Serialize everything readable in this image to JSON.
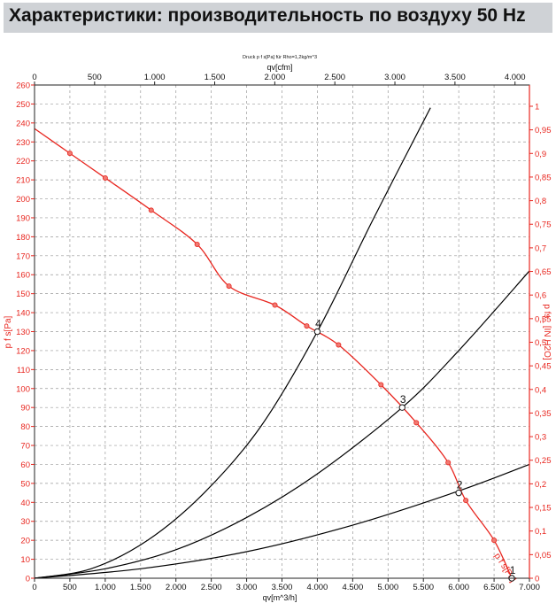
{
  "page": {
    "heading": "Характеристики: производительность по воздуху 50 Hz"
  },
  "chart_data": {
    "type": "line",
    "title": "Druck p f s[Pa] für Rho=1,2kg/m^3",
    "xlabel": "qv[m^3/h]",
    "x2label": "qv[cfm]",
    "ylabel": "p f s[Pa]",
    "y2label": "p fs_ [IN H2O]",
    "xlim": [
      0,
      7000
    ],
    "ylim": [
      0,
      260
    ],
    "x2lim": [
      0,
      4120
    ],
    "y2lim": [
      0,
      1.045
    ],
    "x_ticks": [
      0,
      500,
      1000,
      1500,
      2000,
      2500,
      3000,
      3500,
      4000,
      4500,
      5000,
      5500,
      6000,
      6500,
      7000
    ],
    "x_tick_labels": [
      "0",
      "500",
      "1.000",
      "1.500",
      "2.000",
      "2.500",
      "3.000",
      "3.500",
      "4.000",
      "4.500",
      "5.000",
      "5.500",
      "6.000",
      "6.500",
      "7.000"
    ],
    "y_ticks": [
      0,
      10,
      20,
      30,
      40,
      50,
      60,
      70,
      80,
      90,
      100,
      110,
      120,
      130,
      140,
      150,
      160,
      170,
      180,
      190,
      200,
      210,
      220,
      230,
      240,
      250,
      260
    ],
    "x2_ticks": [
      0,
      500,
      1000,
      1500,
      2000,
      2500,
      3000,
      3500,
      4000
    ],
    "x2_tick_labels": [
      "0",
      "500",
      "1.000",
      "1.500",
      "2.000",
      "2.500",
      "3.000",
      "3.500",
      "4.000"
    ],
    "y2_ticks": [
      0,
      0.05,
      0.1,
      0.15,
      0.2,
      0.25,
      0.3,
      0.35,
      0.4,
      0.45,
      0.5,
      0.55,
      0.6,
      0.65,
      0.7,
      0.75,
      0.8,
      0.85,
      0.9,
      0.95,
      1
    ],
    "y2_tick_labels": [
      "0",
      "0,05",
      "0,1",
      "0,15",
      "0,2",
      "0,25",
      "0,3",
      "0,35",
      "0,4",
      "0,45",
      "0,5",
      "0,55",
      "0,6",
      "0,65",
      "0,7",
      "0,75",
      "0,8",
      "0,85",
      "0,9",
      "0,95",
      "1"
    ],
    "grid": true,
    "colors": {
      "fan_curve": "#e8261f",
      "system_curves": "#000000",
      "secondary_axes": "#e8261f"
    },
    "fan_curve": {
      "x": [
        0,
        500,
        1000,
        1650,
        2300,
        2750,
        3400,
        3850,
        4300,
        4900,
        5400,
        5850,
        6100,
        6500,
        6750
      ],
      "y": [
        237,
        224,
        211,
        194,
        176,
        154,
        144,
        133,
        123,
        102,
        82,
        61,
        41,
        20,
        0
      ]
    },
    "fan_curve_label": "p f s[Pa]",
    "system_curves": [
      {
        "x": [
          0,
          800,
          1600,
          2400,
          3200,
          4000,
          4800,
          5600
        ],
        "y": [
          0,
          5,
          20,
          45,
          80,
          130,
          190,
          248
        ]
      },
      {
        "x": [
          0,
          1000,
          2000,
          3000,
          4000,
          5200,
          6000,
          7000
        ],
        "y": [
          0,
          5,
          15,
          32,
          55,
          90,
          120,
          162
        ]
      },
      {
        "x": [
          0,
          1500,
          3000,
          4500,
          6000,
          7000
        ],
        "y": [
          0,
          5,
          14,
          28,
          46,
          60
        ]
      }
    ],
    "operating_points": [
      {
        "label": "4",
        "x": 4000,
        "y": 130
      },
      {
        "label": "3",
        "x": 5200,
        "y": 90
      },
      {
        "label": "2",
        "x": 6000,
        "y": 45
      },
      {
        "label": "1",
        "x": 6750,
        "y": 0
      }
    ]
  }
}
